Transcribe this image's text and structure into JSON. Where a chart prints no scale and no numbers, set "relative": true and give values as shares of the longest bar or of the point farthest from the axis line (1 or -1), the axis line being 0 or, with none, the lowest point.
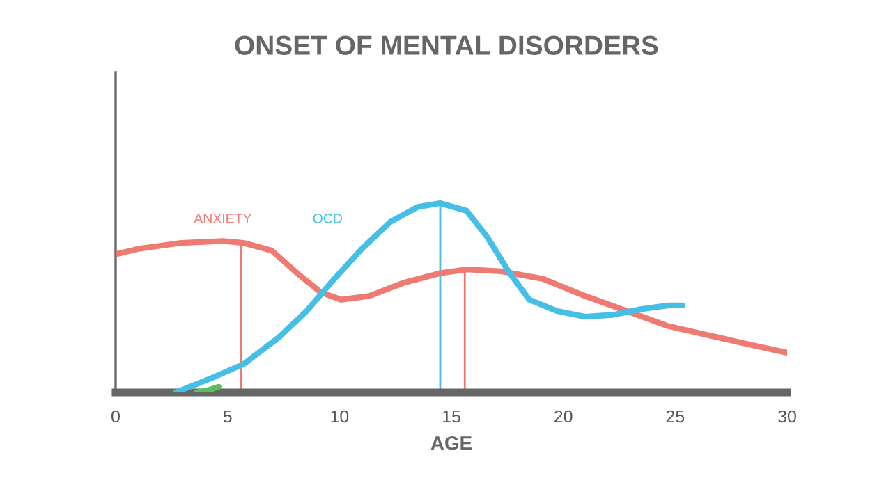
{
  "chart_data": {
    "type": "line",
    "title": "ONSET OF MENTAL DISORDERS",
    "xlabel": "AGE",
    "relative": true,
    "xlim": [
      0,
      30
    ],
    "xticks": [
      0,
      5,
      10,
      15,
      20,
      25,
      30
    ],
    "grid": false,
    "legend": false,
    "series": [
      {
        "name": "ANXIETY",
        "color": "#ef7a72",
        "x": [
          0,
          1.06,
          2.92,
          4.79,
          5.72,
          6.97,
          8.21,
          9.15,
          10.08,
          11.33,
          12.88,
          14.5,
          15.68,
          17.24,
          19.1,
          20.97,
          22.84,
          24.7,
          26.57,
          28.44,
          30
        ],
        "values": [
          0.73,
          0.76,
          0.79,
          0.8,
          0.79,
          0.75,
          0.62,
          0.53,
          0.49,
          0.51,
          0.58,
          0.63,
          0.65,
          0.64,
          0.6,
          0.51,
          0.43,
          0.35,
          0.3,
          0.25,
          0.21
        ]
      },
      {
        "name": "OCD",
        "color": "#45bfe6",
        "x": [
          2.68,
          4.17,
          5.72,
          7.28,
          8.53,
          9.77,
          11.01,
          12.26,
          13.5,
          14.5,
          15.68,
          16.61,
          17.55,
          18.48,
          19.73,
          20.97,
          22.22,
          23.46,
          24.7,
          25.33
        ],
        "values": [
          0,
          0.07,
          0.15,
          0.29,
          0.43,
          0.6,
          0.76,
          0.9,
          0.98,
          1.0,
          0.96,
          0.82,
          0.64,
          0.49,
          0.43,
          0.4,
          0.41,
          0.44,
          0.46,
          0.46
        ]
      },
      {
        "color": "#5cc05a",
        "x": [
          3.6,
          4.1,
          4.6
        ],
        "values": [
          0,
          0.01,
          0.03
        ]
      }
    ],
    "ref_lines": [
      {
        "axis": "x",
        "value": 5.6,
        "color": "#ef7a72"
      },
      {
        "axis": "x",
        "value": 15.6,
        "color": "#ef7a72"
      },
      {
        "axis": "x",
        "value": 14.5,
        "color": "#45bfe6"
      }
    ]
  }
}
